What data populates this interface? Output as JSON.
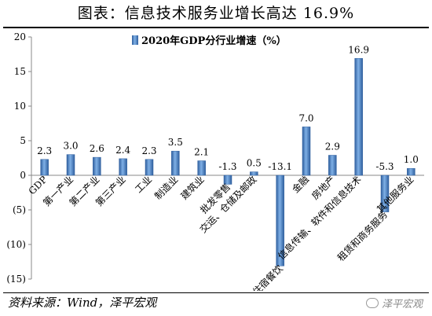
{
  "title": "图表：信息技术服务业增长高达 16.9%",
  "source": "资料来源：Wind，泽平宏观",
  "watermark": "泽平宏观",
  "chart_data": {
    "type": "bar",
    "legend": "2020年GDP分行业增速（%）",
    "legend_position": "top-center",
    "categories": [
      "GDP",
      "第一产业",
      "第二产业",
      "第三产业",
      "工业",
      "制造业",
      "建筑业",
      "批发零售",
      "交运、仓储及邮政",
      "住宿餐饮",
      "金融",
      "房地产",
      "信息传输、软件和信息技术",
      "租赁和商务服务",
      "其他服务业"
    ],
    "values": [
      2.3,
      3.0,
      2.6,
      2.4,
      2.3,
      3.5,
      2.1,
      -1.3,
      0.5,
      -13.1,
      7.0,
      2.9,
      16.9,
      -5.3,
      1.0
    ],
    "data_labels": [
      "2.3",
      "3.0",
      "2.6",
      "2.4",
      "2.3",
      "3.5",
      "2.1",
      "-1.3",
      "0.5",
      "-13.1",
      "7.0",
      "2.9",
      "16.9",
      "-5.3",
      "1.0"
    ],
    "y_ticks": [
      20,
      15,
      10,
      5,
      0,
      -5,
      -10,
      -15
    ],
    "y_tick_labels": [
      "20",
      "15",
      "10",
      "5",
      "0",
      "(5)",
      "(10)",
      "(15)"
    ],
    "ylim": [
      -15,
      20
    ],
    "grid": false,
    "bar_color": "#4a7fc1"
  }
}
